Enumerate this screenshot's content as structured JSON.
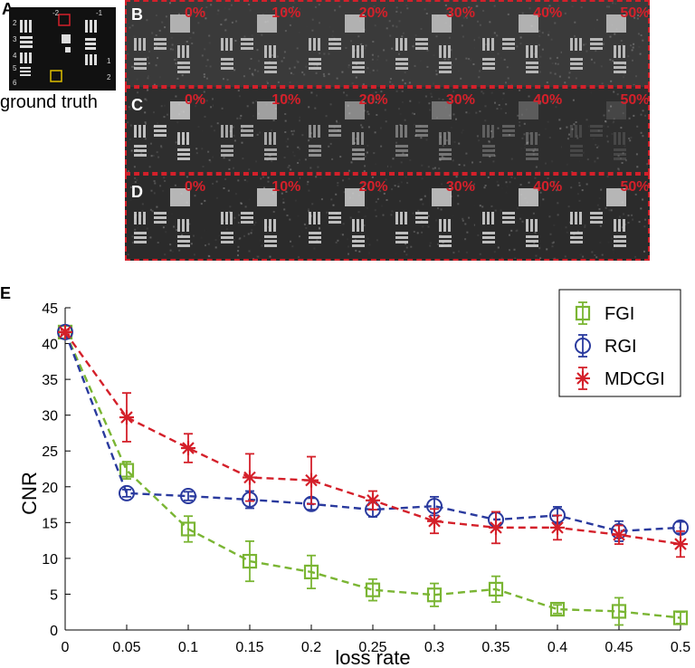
{
  "panels": {
    "a_letter": "A",
    "b_letter": "B",
    "c_letter": "C",
    "d_letter": "D",
    "e_letter": "E",
    "ground_truth_label": "ground truth",
    "gt_tick_labels": [
      "-2",
      "-1",
      "2",
      "3",
      "4",
      "5",
      "6",
      "1",
      "2"
    ],
    "loss_labels": [
      "0%",
      "10%",
      "20%",
      "30%",
      "40%",
      "50%"
    ],
    "colors": {
      "highlight": "#d4202a",
      "gt_box": "#e0c000"
    }
  },
  "chart_data": {
    "type": "line",
    "xlabel": "loss rate",
    "ylabel": "CNR",
    "xlim": [
      0,
      0.5
    ],
    "ylim": [
      0,
      45
    ],
    "x": [
      0,
      0.05,
      0.1,
      0.15,
      0.2,
      0.25,
      0.3,
      0.35,
      0.4,
      0.45,
      0.5
    ],
    "x_ticks": [
      "0",
      "0.05",
      "0.1",
      "0.15",
      "0.2",
      "0.25",
      "0.3",
      "0.35",
      "0.4",
      "0.45",
      "0.5"
    ],
    "y_ticks": [
      0,
      5,
      10,
      15,
      20,
      25,
      30,
      35,
      40,
      45
    ],
    "legend_position": "top-right",
    "series": [
      {
        "name": "FGI",
        "color": "#7ab533",
        "marker": "square",
        "values": [
          41.6,
          22.3,
          14.1,
          9.6,
          8.1,
          5.6,
          4.9,
          5.7,
          2.9,
          2.6,
          1.7
        ],
        "errors": [
          0.3,
          1.2,
          1.8,
          2.8,
          2.3,
          1.5,
          1.6,
          1.8,
          0.6,
          1.9,
          0.8
        ]
      },
      {
        "name": "RGI",
        "color": "#2a3a9e",
        "marker": "circle",
        "values": [
          41.6,
          19.1,
          18.7,
          18.2,
          17.6,
          16.8,
          17.3,
          15.4,
          16.0,
          13.8,
          14.3
        ],
        "errors": [
          0.3,
          0.5,
          0.6,
          1.2,
          0.8,
          1.0,
          1.3,
          1.0,
          1.2,
          1.4,
          0.8
        ]
      },
      {
        "name": "MDCGI",
        "color": "#d4202a",
        "marker": "asterisk",
        "values": [
          41.6,
          29.7,
          25.4,
          21.3,
          20.9,
          18.1,
          15.2,
          14.3,
          14.3,
          13.3,
          12.0
        ],
        "errors": [
          0.3,
          3.4,
          2.0,
          3.3,
          3.3,
          1.3,
          1.7,
          2.2,
          1.7,
          1.3,
          1.8
        ]
      }
    ]
  }
}
